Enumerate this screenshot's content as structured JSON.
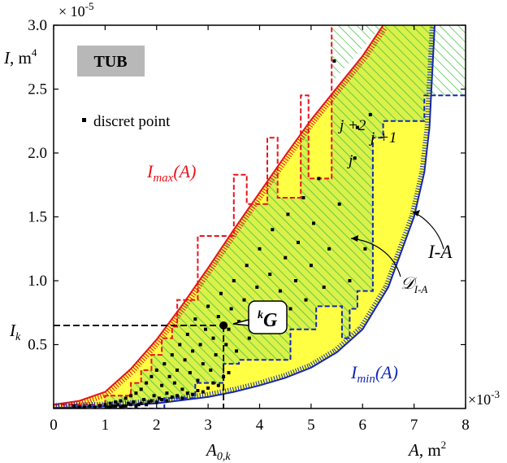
{
  "chart_data": {
    "type": "scatter",
    "xlim": [
      0,
      8
    ],
    "ylim": [
      0,
      3.0
    ],
    "x_multiplier_label": "×10",
    "x_multiplier_exp": "-3",
    "y_multiplier_label": "× 10",
    "y_multiplier_exp": "-5",
    "x_ticks": [
      "0",
      "1",
      "2",
      "3",
      "4",
      "5",
      "6",
      "7",
      "8"
    ],
    "y_ticks": [
      "0.5",
      "1.0",
      "1.5",
      "2.0",
      "2.5",
      "3.0"
    ],
    "x_tick_values": [
      0,
      1,
      2,
      3,
      4,
      5,
      6,
      7,
      8
    ],
    "y_tick_values": [
      0.5,
      1.0,
      1.5,
      2.0,
      2.5,
      3.0
    ],
    "xlabel": {
      "var": "A",
      "unit": ", m",
      "sup": "2"
    },
    "ylabel": {
      "var": "I",
      "unit": ", m",
      "sup": "4"
    },
    "legend_box": "TUB",
    "legend_point": "discret point",
    "annotations": {
      "imax": {
        "base": "I",
        "sub": "max",
        "arg": "(A)"
      },
      "imin": {
        "base": "I",
        "sub": "min",
        "arg": "(A)"
      },
      "ia": "I-A",
      "domain": {
        "base": "𝒟",
        "sub": "I-A"
      },
      "j": "j",
      "j1": "j +1",
      "j2": "j +2",
      "g_sup": "k",
      "g": "G",
      "ik": {
        "base": "I",
        "sub": "k"
      },
      "a0k": {
        "base": "A",
        "sub": "0,k"
      }
    },
    "point_G": {
      "x": 3.3,
      "y": 0.65
    },
    "colors": {
      "imax": "#e8141c",
      "imin": "#1428b4",
      "fill": "#ffff44",
      "hatch": "#3cbf3c",
      "points": "#000000"
    },
    "curve_max": [
      [
        0,
        0.03
      ],
      [
        0.5,
        0.06
      ],
      [
        1,
        0.13
      ],
      [
        1.5,
        0.31
      ],
      [
        2,
        0.54
      ],
      [
        2.5,
        0.81
      ],
      [
        3,
        1.1
      ],
      [
        3.5,
        1.4
      ],
      [
        4,
        1.69
      ],
      [
        4.5,
        1.98
      ],
      [
        5,
        2.26
      ],
      [
        5.5,
        2.51
      ],
      [
        6,
        2.76
      ],
      [
        6.4,
        3.0
      ]
    ],
    "curve_min": [
      [
        0,
        0.005
      ],
      [
        1,
        0.015
      ],
      [
        2,
        0.04
      ],
      [
        3,
        0.09
      ],
      [
        3.5,
        0.13
      ],
      [
        4,
        0.18
      ],
      [
        4.5,
        0.24
      ],
      [
        5,
        0.32
      ],
      [
        5.5,
        0.44
      ],
      [
        6,
        0.62
      ],
      [
        6.5,
        0.95
      ],
      [
        7,
        1.5
      ],
      [
        7.2,
        1.85
      ],
      [
        7.3,
        2.2
      ],
      [
        7.4,
        3.0
      ]
    ],
    "step_upper": [
      [
        0,
        0.03
      ],
      [
        1,
        0.03
      ],
      [
        1,
        0.1
      ],
      [
        1.5,
        0.1
      ],
      [
        1.5,
        0.2
      ],
      [
        1.7,
        0.2
      ],
      [
        1.7,
        0.3
      ],
      [
        1.9,
        0.3
      ],
      [
        1.9,
        0.42
      ],
      [
        2.1,
        0.42
      ],
      [
        2.1,
        0.55
      ],
      [
        2.3,
        0.55
      ],
      [
        2.3,
        0.64
      ],
      [
        2.4,
        0.64
      ],
      [
        2.4,
        0.85
      ],
      [
        2.8,
        0.85
      ],
      [
        2.8,
        1.35
      ],
      [
        3.2,
        1.35
      ],
      [
        3.2,
        1.35
      ],
      [
        3.5,
        1.35
      ],
      [
        3.5,
        1.83
      ],
      [
        3.75,
        1.83
      ],
      [
        3.75,
        1.6
      ],
      [
        4.15,
        1.6
      ],
      [
        4.15,
        2.12
      ],
      [
        4.35,
        2.12
      ],
      [
        4.35,
        1.65
      ],
      [
        4.8,
        1.65
      ],
      [
        4.8,
        2.45
      ],
      [
        4.95,
        2.45
      ],
      [
        4.95,
        1.8
      ],
      [
        5.4,
        1.8
      ],
      [
        5.4,
        3.0
      ]
    ],
    "step_lower": [
      [
        1,
        0.0
      ],
      [
        2.15,
        0.0
      ],
      [
        2.15,
        0.08
      ],
      [
        2.75,
        0.08
      ],
      [
        2.75,
        0.2
      ],
      [
        3.3,
        0.2
      ],
      [
        3.3,
        0.35
      ],
      [
        3.6,
        0.35
      ],
      [
        3.6,
        0.38
      ],
      [
        4.6,
        0.38
      ],
      [
        4.6,
        0.62
      ],
      [
        5.1,
        0.62
      ],
      [
        5.1,
        0.8
      ],
      [
        5.6,
        0.8
      ],
      [
        5.6,
        0.55
      ],
      [
        5.75,
        0.55
      ],
      [
        5.75,
        0.78
      ],
      [
        5.9,
        0.78
      ],
      [
        5.9,
        0.92
      ],
      [
        6.2,
        0.92
      ],
      [
        6.2,
        2.12
      ],
      [
        6.4,
        2.12
      ],
      [
        6.4,
        2.25
      ],
      [
        7.2,
        2.25
      ],
      [
        7.2,
        2.45
      ],
      [
        8,
        2.45
      ]
    ],
    "points": [
      [
        0.6,
        0.01
      ],
      [
        0.7,
        0.02
      ],
      [
        0.8,
        0.01
      ],
      [
        0.9,
        0.02
      ],
      [
        1.0,
        0.03
      ],
      [
        1.05,
        0.01
      ],
      [
        1.1,
        0.04
      ],
      [
        1.15,
        0.02
      ],
      [
        1.2,
        0.05
      ],
      [
        1.25,
        0.03
      ],
      [
        1.3,
        0.06
      ],
      [
        1.35,
        0.02
      ],
      [
        1.4,
        0.08
      ],
      [
        1.45,
        0.04
      ],
      [
        1.5,
        0.1
      ],
      [
        1.55,
        0.05
      ],
      [
        1.6,
        0.12
      ],
      [
        1.65,
        0.03
      ],
      [
        1.7,
        0.15
      ],
      [
        1.75,
        0.07
      ],
      [
        1.8,
        0.2
      ],
      [
        1.85,
        0.05
      ],
      [
        1.9,
        0.25
      ],
      [
        1.95,
        0.1
      ],
      [
        2.0,
        0.3
      ],
      [
        2.05,
        0.08
      ],
      [
        2.1,
        0.18
      ],
      [
        2.15,
        0.35
      ],
      [
        2.2,
        0.12
      ],
      [
        2.25,
        0.25
      ],
      [
        2.3,
        0.42
      ],
      [
        2.35,
        0.2
      ],
      [
        2.4,
        0.3
      ],
      [
        2.45,
        0.5
      ],
      [
        2.5,
        0.15
      ],
      [
        2.55,
        0.38
      ],
      [
        2.6,
        0.58
      ],
      [
        2.65,
        0.28
      ],
      [
        2.7,
        0.45
      ],
      [
        2.75,
        0.7
      ],
      [
        2.8,
        0.22
      ],
      [
        2.85,
        0.5
      ],
      [
        2.9,
        0.35
      ],
      [
        2.95,
        0.62
      ],
      [
        3.0,
        0.8
      ],
      [
        3.05,
        0.3
      ],
      [
        3.1,
        0.55
      ],
      [
        3.15,
        0.42
      ],
      [
        3.2,
        0.72
      ],
      [
        3.25,
        0.9
      ],
      [
        3.35,
        0.5
      ],
      [
        3.4,
        0.62
      ],
      [
        3.45,
        0.78
      ],
      [
        3.5,
        1.0
      ],
      [
        3.55,
        0.45
      ],
      [
        3.6,
        0.68
      ],
      [
        3.7,
        0.85
      ],
      [
        3.75,
        1.12
      ],
      [
        3.8,
        0.55
      ],
      [
        3.9,
        0.72
      ],
      [
        3.95,
        0.95
      ],
      [
        4.0,
        1.25
      ],
      [
        4.05,
        0.6
      ],
      [
        4.15,
        0.82
      ],
      [
        4.2,
        1.05
      ],
      [
        4.25,
        1.4
      ],
      [
        4.35,
        0.68
      ],
      [
        4.4,
        0.92
      ],
      [
        4.5,
        1.18
      ],
      [
        4.55,
        1.52
      ],
      [
        4.6,
        0.78
      ],
      [
        4.7,
        1.0
      ],
      [
        4.75,
        1.3
      ],
      [
        4.85,
        1.65
      ],
      [
        4.9,
        0.85
      ],
      [
        5.0,
        1.12
      ],
      [
        5.05,
        1.45
      ],
      [
        5.15,
        1.8
      ],
      [
        5.25,
        0.95
      ],
      [
        5.35,
        1.25
      ],
      [
        5.45,
        2.72
      ],
      [
        5.55,
        1.6
      ],
      [
        5.75,
        1.0
      ],
      [
        5.85,
        1.96
      ],
      [
        5.9,
        2.2
      ],
      [
        6.05,
        1.25
      ],
      [
        6.15,
        2.3
      ],
      [
        0.4,
        0.02
      ],
      [
        0.5,
        0.01
      ],
      [
        1.1,
        0.01
      ],
      [
        1.2,
        0.02
      ],
      [
        1.3,
        0.01
      ],
      [
        1.4,
        0.02
      ],
      [
        1.5,
        0.03
      ],
      [
        1.6,
        0.02
      ],
      [
        1.7,
        0.04
      ],
      [
        1.8,
        0.03
      ],
      [
        1.9,
        0.06
      ],
      [
        2.0,
        0.05
      ],
      [
        2.1,
        0.07
      ],
      [
        2.2,
        0.06
      ],
      [
        2.3,
        0.09
      ],
      [
        2.4,
        0.1
      ],
      [
        2.5,
        0.08
      ],
      [
        2.6,
        0.12
      ],
      [
        2.7,
        0.11
      ],
      [
        2.8,
        0.14
      ],
      [
        2.9,
        0.13
      ],
      [
        3.0,
        0.16
      ],
      [
        3.1,
        0.2
      ],
      [
        3.2,
        0.18
      ],
      [
        3.3,
        0.25
      ],
      [
        3.4,
        0.28
      ]
    ]
  }
}
